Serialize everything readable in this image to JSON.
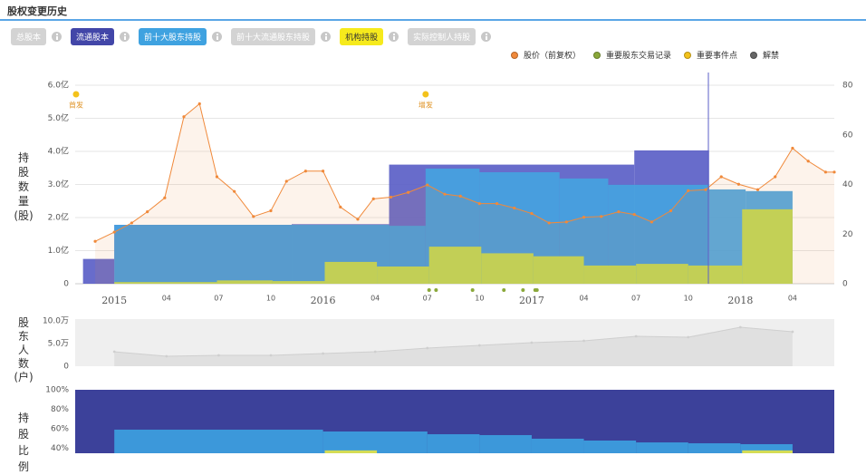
{
  "title": "股权变更历史",
  "tabs": [
    "总股本",
    "流通股本",
    "前十大股东持股",
    "前十大流通股东持股",
    "机构持股",
    "实际控制人持股"
  ],
  "chart_data": [
    {
      "type": "combo",
      "y_label": "持股数量(股)",
      "xlim": [
        -2.25,
        41.4
      ],
      "xticks": [
        {
          "value": 0,
          "label": "2015"
        },
        {
          "value": 3,
          "label": "04"
        },
        {
          "value": 6,
          "label": "07"
        },
        {
          "value": 9,
          "label": "10"
        },
        {
          "value": 12,
          "label": "2016"
        },
        {
          "value": 15,
          "label": "04"
        },
        {
          "value": 18,
          "label": "07"
        },
        {
          "value": 21,
          "label": "10"
        },
        {
          "value": 24,
          "label": "2017"
        },
        {
          "value": 27,
          "label": "04"
        },
        {
          "value": 30,
          "label": "07"
        },
        {
          "value": 33,
          "label": "10"
        },
        {
          "value": 36,
          "label": "2018"
        },
        {
          "value": 39,
          "label": "04"
        }
      ],
      "ylim": [
        0,
        600000000
      ],
      "yticks": [
        0,
        {
          "value": 100000000,
          "label": "1.0亿"
        },
        {
          "value": 200000000,
          "label": "2.0亿"
        },
        {
          "value": 300000000,
          "label": "3.0亿"
        },
        {
          "value": 400000000,
          "label": "4.0亿"
        },
        {
          "value": 500000000,
          "label": "5.0亿"
        },
        {
          "value": 600000000,
          "label": "6.0亿"
        }
      ],
      "y2lim": [
        0,
        80
      ],
      "y2ticks": [
        0,
        20,
        40,
        60,
        80
      ],
      "grid": true,
      "legend": "top-right",
      "series": [
        {
          "type": "step-area",
          "color": "#5b5fc7",
          "x": [
            -1.8,
            0,
            10.2,
            15.8,
            29.9,
            34.2
          ],
          "values": [
            75000000,
            178000000,
            180000000,
            360000000,
            403000000,
            null
          ]
        },
        {
          "type": "step-area",
          "color": "#45a3e0",
          "x": [
            0,
            15.8,
            17.9,
            21,
            25.6,
            28.4,
            34.2,
            36.3,
            39
          ],
          "values": [
            178000000,
            175000000,
            348000000,
            337000000,
            318000000,
            299000000,
            285000000,
            280000000,
            null
          ]
        },
        {
          "type": "step-area",
          "color": "#c9dc4e",
          "x": [
            0,
            5.9,
            9.1,
            12.1,
            15.1,
            18.1,
            21.1,
            24.1,
            27,
            30,
            33,
            36.1,
            39
          ],
          "values": [
            5000000,
            10000000,
            8000000,
            66000000,
            52000000,
            112000000,
            92000000,
            83000000,
            55000000,
            60000000,
            55000000,
            225000000,
            null
          ]
        },
        {
          "type": "line",
          "name": "股价（前复权）",
          "color": "#f0893a",
          "axis": "y2",
          "x": [
            -1.1,
            0,
            1,
            1.9,
            2.9,
            4,
            4.9,
            5.9,
            6.9,
            8,
            9,
            9.9,
            11,
            12,
            13,
            14,
            14.9,
            15.9,
            16.9,
            18,
            19,
            19.9,
            21,
            22,
            23,
            24,
            25,
            26,
            27,
            28,
            29,
            29.9,
            30.9,
            32,
            33,
            34,
            34.9,
            35.9,
            37,
            38,
            39,
            39.9,
            40.9,
            41.4
          ],
          "values": [
            17.1,
            20.8,
            24.5,
            29,
            34.6,
            67.3,
            72.5,
            43.1,
            37.2,
            27.1,
            29.4,
            41.3,
            45.4,
            45.4,
            30.9,
            26,
            34.2,
            34.9,
            36.8,
            39.8,
            36.1,
            35.3,
            32.3,
            32.3,
            30.5,
            28.3,
            24.5,
            24.9,
            26.8,
            27.1,
            29,
            27.9,
            24.9,
            29.4,
            37.5,
            37.9,
            43.1,
            40.1,
            37.9,
            43.1,
            54.6,
            49.4,
            45,
            45
          ]
        },
        {
          "type": "marker",
          "name": "重要股东交易记录",
          "color": "#8aa83a",
          "x": [
            18.1,
            18.5,
            20.6,
            22.4,
            23.5,
            24.2,
            24.3
          ]
        },
        {
          "type": "event",
          "name": "重要事件点",
          "color": "#f3c21b",
          "x": [
            -2.2,
            17.9
          ],
          "labels": [
            "首发",
            "增发"
          ]
        },
        {
          "type": "marker",
          "name": "解禁",
          "color": "#666666",
          "x": []
        }
      ]
    },
    {
      "type": "area",
      "y_label": "股东人数(户)",
      "background": "#efefef",
      "xlim": [
        -2.25,
        41.4
      ],
      "ylim": [
        0,
        100000
      ],
      "yticks": [
        0,
        {
          "value": 50000,
          "label": "5.0万"
        },
        {
          "value": 100000,
          "label": "10.0万"
        }
      ],
      "series": [
        {
          "color": "#cfcfcf",
          "x": [
            0,
            3,
            6,
            9,
            12,
            15,
            18,
            21,
            24,
            27,
            30,
            33,
            36,
            39
          ],
          "values": [
            32000,
            22000,
            24000,
            24000,
            28000,
            32000,
            40000,
            46000,
            52000,
            56000,
            66000,
            64000,
            86000,
            76000
          ]
        }
      ]
    },
    {
      "type": "step-area",
      "y_label": "持股比例",
      "xlim": [
        -2.25,
        41.4
      ],
      "ylim": [
        0,
        100
      ],
      "yticks": [
        {
          "value": 40,
          "label": "40%"
        },
        {
          "value": 60,
          "label": "60%"
        },
        {
          "value": 80,
          "label": "80%"
        },
        {
          "value": 100,
          "label": "100%"
        }
      ],
      "series": [
        {
          "color": "#2b3191",
          "x": [
            -2.25,
            41.4
          ],
          "values": [
            100,
            null
          ]
        },
        {
          "color": "#3d9fe0",
          "x": [
            0,
            12,
            18,
            21,
            24,
            27,
            30,
            33,
            36,
            39
          ],
          "values": [
            59.1,
            57.2,
            54.4,
            53.5,
            49.8,
            47.9,
            46,
            45.1,
            44.2,
            null
          ]
        },
        {
          "color": "#e2e24a",
          "x": [
            12.1,
            15.1,
            36.1,
            39
          ],
          "values": [
            37.8,
            null,
            37.8,
            null
          ]
        }
      ]
    }
  ]
}
